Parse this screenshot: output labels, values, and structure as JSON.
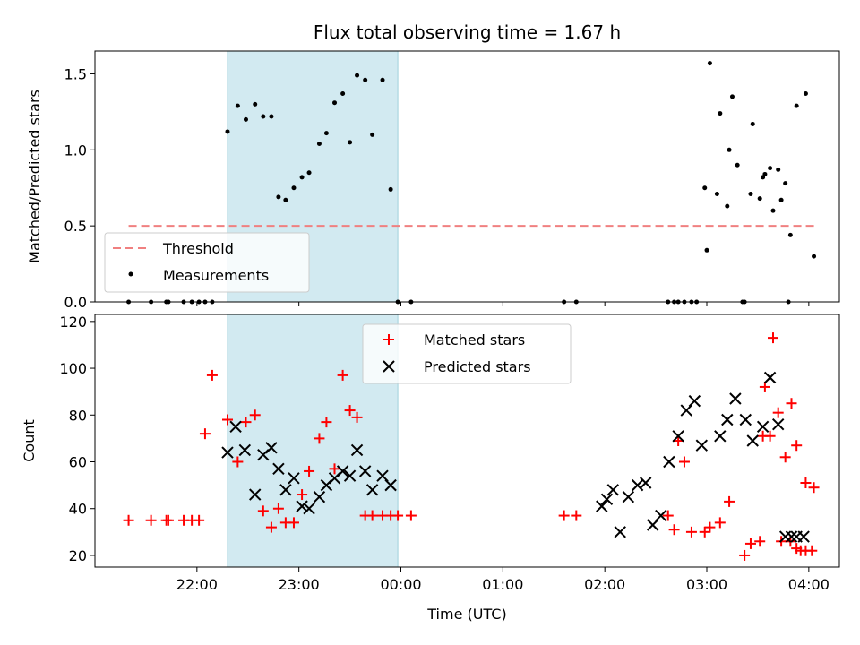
{
  "chart_data": [
    {
      "type": "scatter",
      "title": "Flux total observing time = 1.67 h",
      "ylabel": "Matched/Predicted stars",
      "xlabel": "",
      "ylim": [
        0,
        1.65
      ],
      "xlim": [
        21.0,
        28.3
      ],
      "yticks": [
        0.0,
        0.5,
        1.0,
        1.5
      ],
      "ytick_labels": [
        "0.0",
        "0.5",
        "1.0",
        "1.5"
      ],
      "shaded_region": [
        22.3,
        23.97
      ],
      "threshold": {
        "value": 0.5,
        "x_range": [
          21.33,
          28.08
        ],
        "color": "#f08080"
      },
      "legend": {
        "placement": "lower-left",
        "entries": [
          "Threshold",
          "Measurements"
        ]
      },
      "series": [
        {
          "name": "Measurements",
          "color": "#000000",
          "x": [
            21.33,
            21.55,
            21.7,
            21.72,
            21.87,
            21.95,
            22.02,
            22.08,
            22.15,
            22.3,
            22.4,
            22.48,
            22.57,
            22.65,
            22.73,
            22.8,
            22.87,
            22.95,
            23.03,
            23.1,
            23.2,
            23.27,
            23.35,
            23.43,
            23.5,
            23.57,
            23.65,
            23.72,
            23.82,
            23.9,
            23.97,
            24.1,
            25.6,
            25.72,
            26.62,
            26.68,
            26.72,
            26.78,
            26.85,
            26.98,
            27.03,
            27.13,
            27.22,
            27.37,
            27.43,
            27.52,
            27.57,
            27.65,
            27.73,
            27.82,
            27.88,
            27.97,
            28.05
          ],
          "y": [
            0,
            0,
            0,
            0,
            0,
            0,
            0,
            0,
            0,
            1.12,
            1.29,
            1.2,
            1.3,
            1.22,
            1.22,
            0.69,
            0.67,
            0.75,
            0.82,
            0.85,
            1.04,
            1.11,
            1.31,
            1.37,
            1.05,
            1.49,
            1.46,
            1.1,
            1.46,
            0.74,
            0,
            0,
            0,
            0,
            0,
            0,
            0,
            0,
            0,
            0.75,
            1.57,
            1.24,
            1.0,
            0,
            0.71,
            0.68,
            0.84,
            0.6,
            0.67,
            0.44,
            1.29,
            1.37,
            0.3
          ]
        },
        {
          "name": "",
          "color": "#000000",
          "x": [
            26.9,
            27.0,
            27.1,
            27.2,
            27.25,
            27.3,
            27.35,
            27.45,
            27.55,
            27.62,
            27.7,
            27.77,
            27.8
          ],
          "y": [
            0,
            0.34,
            0.71,
            0.63,
            1.35,
            0.9,
            0,
            1.17,
            0.82,
            0.88,
            0.87,
            0.78,
            0
          ]
        }
      ]
    },
    {
      "type": "scatter",
      "title": "",
      "xlabel": "Time (UTC)",
      "ylabel": "Count",
      "ylim": [
        15,
        123
      ],
      "xlim": [
        21.0,
        28.3
      ],
      "yticks": [
        20,
        40,
        60,
        80,
        100,
        120
      ],
      "ytick_labels": [
        "20",
        "40",
        "60",
        "80",
        "100",
        "120"
      ],
      "xticks": [
        22,
        23,
        24,
        25,
        26,
        27,
        28
      ],
      "xtick_labels": [
        "22:00",
        "23:00",
        "00:00",
        "01:00",
        "02:00",
        "03:00",
        "04:00"
      ],
      "shaded_region": [
        22.3,
        23.97
      ],
      "legend": {
        "placement": "top-center",
        "entries": [
          "Matched stars",
          "Predicted stars"
        ]
      },
      "series": [
        {
          "name": "Matched stars",
          "color": "#ff0000",
          "marker": "plus",
          "x": [
            21.33,
            21.55,
            21.7,
            21.72,
            21.87,
            21.95,
            22.02,
            22.08,
            22.15,
            22.3,
            22.4,
            22.48,
            22.57,
            22.65,
            22.73,
            22.8,
            22.87,
            22.95,
            23.03,
            23.1,
            23.2,
            23.27,
            23.35,
            23.43,
            23.5,
            23.57,
            23.65,
            23.72,
            23.82,
            23.9,
            23.97,
            24.1,
            25.6,
            25.72,
            26.62,
            26.68,
            26.72,
            26.78,
            26.85,
            26.98,
            27.03,
            27.13,
            27.22,
            27.37,
            27.43,
            27.52,
            27.57,
            27.65,
            27.73,
            27.82,
            27.88,
            27.97,
            28.05
          ],
          "y": [
            35,
            35,
            35,
            35,
            35,
            35,
            35,
            72,
            97,
            78,
            60,
            77,
            80,
            39,
            32,
            40,
            34,
            34,
            46,
            56,
            70,
            77,
            57,
            97,
            82,
            79,
            37,
            37,
            37,
            37,
            37,
            37,
            37,
            37,
            37,
            31,
            69,
            60,
            30,
            30,
            32,
            34,
            43,
            20,
            25,
            26,
            92,
            113,
            26,
            26,
            23,
            51,
            49
          ]
        },
        {
          "name": "",
          "color": "#ff0000",
          "marker": "plus",
          "x": [
            27.55,
            27.62,
            27.7,
            27.77,
            27.83,
            27.88,
            27.92,
            27.97,
            28.03
          ],
          "y": [
            71,
            71,
            81,
            62,
            85,
            67,
            22,
            22,
            22
          ]
        },
        {
          "name": "Predicted stars",
          "color": "#000000",
          "marker": "x",
          "x": [
            22.3,
            22.38,
            22.47,
            22.57,
            22.65,
            22.73,
            22.8,
            22.87,
            22.95,
            23.03,
            23.1,
            23.2,
            23.27,
            23.35,
            23.43,
            23.5,
            23.57,
            23.65,
            23.72,
            23.82,
            23.9,
            25.97,
            26.02,
            26.08,
            26.15,
            26.23,
            26.32,
            26.4,
            26.47,
            26.55,
            26.63,
            26.72,
            26.8,
            26.88,
            26.95,
            27.13,
            27.2,
            27.28,
            27.38,
            27.45,
            27.55,
            27.62,
            27.7,
            27.77,
            27.83,
            27.88,
            27.95
          ],
          "y": [
            64,
            75,
            65,
            46,
            63,
            66,
            57,
            48,
            53,
            41,
            40,
            45,
            50,
            53,
            56,
            54,
            65,
            56,
            48,
            54,
            50,
            41,
            44,
            48,
            30,
            45,
            50,
            51,
            33,
            37,
            60,
            71,
            82,
            86,
            67,
            71,
            78,
            87,
            78,
            69,
            75,
            96,
            76,
            28,
            28,
            28,
            28
          ]
        }
      ]
    }
  ]
}
